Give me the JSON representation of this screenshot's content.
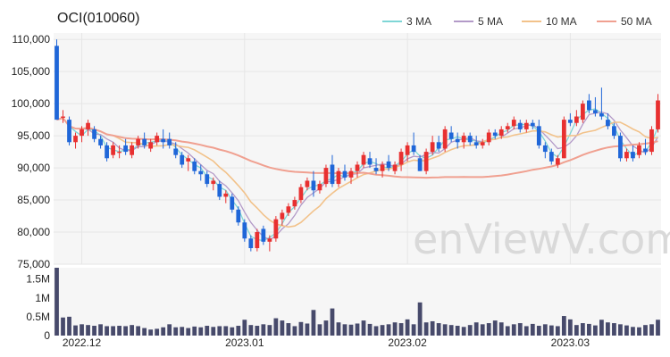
{
  "title": "OCI(010060)",
  "watermark": "enViewV.com",
  "legend": [
    {
      "label": "3 MA",
      "color": "#7fd6d6"
    },
    {
      "label": "5 MA",
      "color": "#b39ac8"
    },
    {
      "label": "10 MA",
      "color": "#f2c28a"
    },
    {
      "label": "50 MA",
      "color": "#f0a090"
    }
  ],
  "colors": {
    "up": "#e83030",
    "down": "#1f66d8",
    "volume": "#474a6b",
    "plot_bg": "#f6f6f6"
  },
  "chart_data": {
    "type": "candlestick",
    "title": "OCI(010060)",
    "price_axis": {
      "ylim": [
        75000,
        111000
      ],
      "ticks": [
        75000,
        80000,
        85000,
        90000,
        95000,
        100000,
        105000,
        110000
      ],
      "tick_labels": [
        "75,000",
        "80,000",
        "85,000",
        "90,000",
        "95,000",
        "100,000",
        "105,000",
        "110,000"
      ]
    },
    "volume_axis": {
      "ylim": [
        0,
        1800000
      ],
      "ticks": [
        0,
        500000,
        1000000,
        1500000
      ],
      "tick_labels": [
        "0",
        "0.5M",
        "1M",
        "1.5M"
      ]
    },
    "x_labels": [
      {
        "index": 4,
        "label": "2022.12"
      },
      {
        "index": 30,
        "label": "2023.01"
      },
      {
        "index": 56,
        "label": "2023.02"
      },
      {
        "index": 82,
        "label": "2023.03"
      }
    ],
    "candles": [
      [
        109000,
        110000,
        97500,
        97500,
        1800000
      ],
      [
        97800,
        99000,
        97000,
        98000,
        480000
      ],
      [
        97500,
        98000,
        93500,
        94000,
        500000
      ],
      [
        94000,
        95500,
        93000,
        95000,
        270000
      ],
      [
        95000,
        96500,
        94000,
        96000,
        300000
      ],
      [
        96000,
        97500,
        95000,
        97000,
        280000
      ],
      [
        96000,
        96500,
        94000,
        94500,
        260000
      ],
      [
        94500,
        95000,
        93000,
        93500,
        300000
      ],
      [
        93500,
        94000,
        91000,
        91500,
        250000
      ],
      [
        92000,
        94000,
        91500,
        93500,
        250000
      ],
      [
        92500,
        93500,
        91500,
        92500,
        260000
      ],
      [
        93500,
        94500,
        92000,
        92500,
        250000
      ],
      [
        92000,
        94000,
        91500,
        93500,
        280000
      ],
      [
        93500,
        95000,
        93000,
        94500,
        250000
      ],
      [
        94500,
        95500,
        93000,
        93500,
        200000
      ],
      [
        93000,
        94500,
        92500,
        94000,
        160000
      ],
      [
        94000,
        95500,
        93500,
        95000,
        180000
      ],
      [
        94500,
        96000,
        93000,
        94000,
        220000
      ],
      [
        94500,
        95500,
        93000,
        93500,
        300000
      ],
      [
        93000,
        94000,
        91500,
        92000,
        220000
      ],
      [
        92000,
        92500,
        90000,
        90500,
        230000
      ],
      [
        91000,
        92000,
        89500,
        91500,
        200000
      ],
      [
        91000,
        91500,
        89000,
        89500,
        240000
      ],
      [
        89500,
        90500,
        88000,
        89000,
        220000
      ],
      [
        89000,
        89500,
        87000,
        87500,
        260000
      ],
      [
        87500,
        88500,
        86500,
        88000,
        230000
      ],
      [
        87500,
        88000,
        85000,
        85500,
        250000
      ],
      [
        85500,
        86500,
        84500,
        86000,
        250000
      ],
      [
        85500,
        86000,
        83000,
        83500,
        220000
      ],
      [
        83500,
        84000,
        81000,
        81500,
        260000
      ],
      [
        81500,
        82000,
        78500,
        79000,
        420000
      ],
      [
        79000,
        79500,
        77000,
        77500,
        280000
      ],
      [
        77500,
        80500,
        77000,
        80000,
        260000
      ],
      [
        80500,
        81000,
        78000,
        78500,
        300000
      ],
      [
        78500,
        79500,
        77000,
        79000,
        280000
      ],
      [
        79000,
        82500,
        78500,
        82000,
        460000
      ],
      [
        82000,
        83500,
        81000,
        83000,
        400000
      ],
      [
        83000,
        84500,
        82500,
        84000,
        330000
      ],
      [
        84000,
        85500,
        83500,
        85000,
        250000
      ],
      [
        85000,
        87500,
        84500,
        87000,
        360000
      ],
      [
        87000,
        88500,
        86500,
        88000,
        320000
      ],
      [
        88000,
        89500,
        85500,
        86500,
        680000
      ],
      [
        86500,
        88000,
        86000,
        87500,
        300000
      ],
      [
        87500,
        90500,
        87000,
        90000,
        400000
      ],
      [
        90500,
        92000,
        87000,
        87500,
        720000
      ],
      [
        87500,
        90000,
        87000,
        89500,
        350000
      ],
      [
        89500,
        90500,
        88000,
        88500,
        300000
      ],
      [
        88500,
        90000,
        87500,
        89500,
        290000
      ],
      [
        89500,
        91000,
        88500,
        90500,
        320000
      ],
      [
        90500,
        92500,
        90000,
        92000,
        400000
      ],
      [
        91500,
        92500,
        90000,
        90500,
        310000
      ],
      [
        90000,
        91500,
        89000,
        89500,
        250000
      ],
      [
        89500,
        91000,
        88500,
        90500,
        280000
      ],
      [
        91000,
        92000,
        89500,
        90000,
        300000
      ],
      [
        89500,
        91000,
        89000,
        90500,
        350000
      ],
      [
        90500,
        93000,
        89500,
        92500,
        330000
      ],
      [
        92000,
        94000,
        91000,
        93500,
        430000
      ],
      [
        93500,
        95500,
        92000,
        92500,
        300000
      ],
      [
        91500,
        92000,
        89500,
        89500,
        880000
      ],
      [
        89500,
        93000,
        89000,
        92500,
        350000
      ],
      [
        92500,
        95000,
        92000,
        94000,
        380000
      ],
      [
        94000,
        95000,
        92500,
        93000,
        330000
      ],
      [
        93000,
        96500,
        92500,
        96000,
        300000
      ],
      [
        95500,
        96500,
        94000,
        94500,
        280000
      ],
      [
        94500,
        95500,
        93000,
        94000,
        260000
      ],
      [
        94000,
        95500,
        93000,
        95000,
        230000
      ],
      [
        95000,
        95500,
        93500,
        94000,
        280000
      ],
      [
        94000,
        95000,
        93000,
        93500,
        350000
      ],
      [
        93500,
        94500,
        93000,
        94000,
        300000
      ],
      [
        94000,
        96000,
        93500,
        95500,
        330000
      ],
      [
        95500,
        96000,
        94500,
        95000,
        400000
      ],
      [
        95000,
        96500,
        94500,
        96000,
        350000
      ],
      [
        96000,
        97000,
        95500,
        96500,
        250000
      ],
      [
        96500,
        98000,
        96000,
        97500,
        300000
      ],
      [
        97000,
        97500,
        95500,
        96000,
        330000
      ],
      [
        96000,
        97500,
        95500,
        97000,
        250000
      ],
      [
        97000,
        97500,
        96000,
        96500,
        310000
      ],
      [
        96500,
        97500,
        93000,
        93500,
        260000
      ],
      [
        93500,
        94000,
        91500,
        92500,
        300000
      ],
      [
        92500,
        93000,
        90500,
        91000,
        270000
      ],
      [
        90500,
        92000,
        90000,
        91500,
        250000
      ],
      [
        91500,
        98000,
        91500,
        97500,
        520000
      ],
      [
        97500,
        98500,
        96500,
        97000,
        430000
      ],
      [
        97000,
        99000,
        96500,
        98000,
        280000
      ],
      [
        97500,
        100500,
        97000,
        100000,
        330000
      ],
      [
        100500,
        101500,
        98500,
        99000,
        310000
      ],
      [
        99000,
        101000,
        98000,
        98500,
        270000
      ],
      [
        98500,
        102500,
        97500,
        98000,
        420000
      ],
      [
        97500,
        98500,
        96000,
        96500,
        350000
      ],
      [
        96500,
        97000,
        94500,
        95000,
        330000
      ],
      [
        95000,
        95500,
        91000,
        91500,
        300000
      ],
      [
        91500,
        93000,
        91000,
        92500,
        270000
      ],
      [
        92500,
        93500,
        91000,
        91500,
        230000
      ],
      [
        92000,
        94000,
        91500,
        93500,
        220000
      ],
      [
        93000,
        94500,
        92000,
        92500,
        280000
      ],
      [
        92500,
        96500,
        92000,
        96000,
        300000
      ],
      [
        96000,
        101500,
        95500,
        100500,
        420000
      ]
    ]
  }
}
